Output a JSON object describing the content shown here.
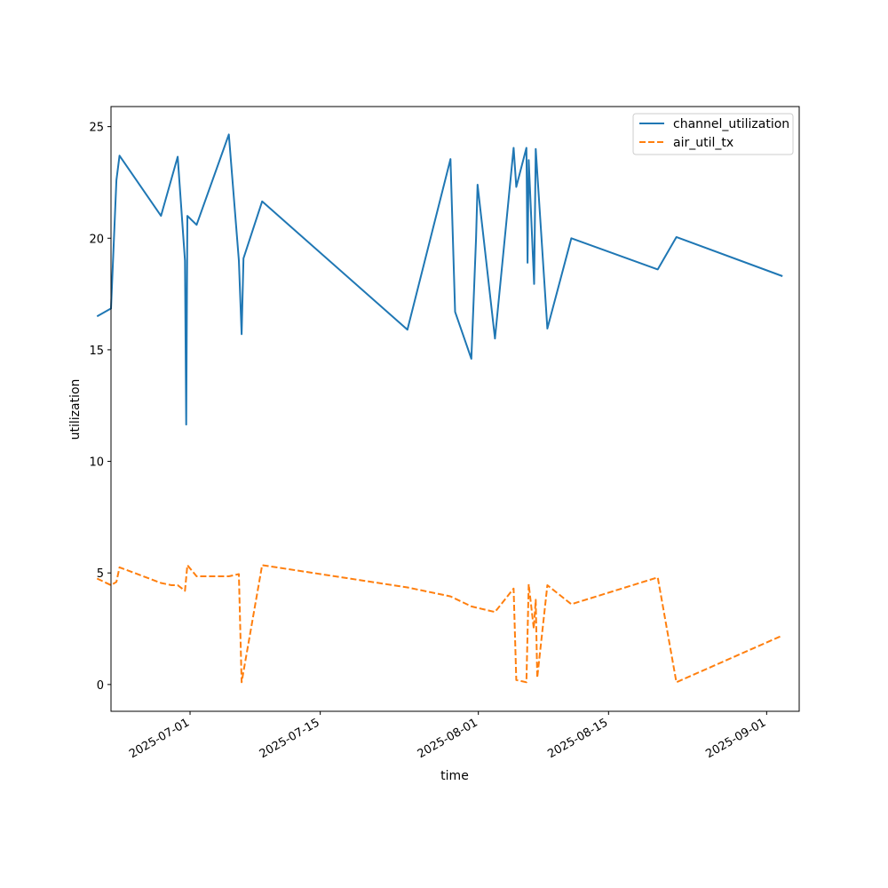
{
  "chart_data": {
    "type": "line",
    "title": "",
    "xlabel": "time",
    "ylabel": "utilization",
    "xlim": [
      "2025-06-22T12:00",
      "2025-09-04T12:00"
    ],
    "ylim": [
      -1.2,
      25.9
    ],
    "x_ticks": [
      "2025-07-01",
      "2025-07-15",
      "2025-08-01",
      "2025-08-15",
      "2025-09-01"
    ],
    "y_ticks": [
      0,
      5,
      10,
      15,
      20,
      25
    ],
    "grid": false,
    "legend_position": "top-right",
    "colors": {
      "channel_utilization": "#1f77b4",
      "air_util_tx": "#ff7f0e"
    },
    "series": [
      {
        "name": "channel_utilization",
        "line_style": "solid",
        "points": [
          [
            "2025-06-21T00:00",
            16.5
          ],
          [
            "2025-06-22T12:00",
            16.85
          ],
          [
            "2025-06-23T02:00",
            22.6
          ],
          [
            "2025-06-23T10:00",
            23.7
          ],
          [
            "2025-06-27T21:00",
            21.0
          ],
          [
            "2025-06-29T16:00",
            23.65
          ],
          [
            "2025-06-30T11:00",
            19.0
          ],
          [
            "2025-06-30T14:00",
            11.65
          ],
          [
            "2025-06-30T17:00",
            21.0
          ],
          [
            "2025-07-01T17:00",
            20.6
          ],
          [
            "2025-07-05T04:00",
            24.65
          ],
          [
            "2025-07-06T06:00",
            19.0
          ],
          [
            "2025-07-06T13:00",
            15.7
          ],
          [
            "2025-07-06T18:00",
            19.1
          ],
          [
            "2025-07-08T18:00",
            21.65
          ],
          [
            "2025-07-24T09:00",
            15.9
          ],
          [
            "2025-07-29T00:00",
            23.55
          ],
          [
            "2025-07-29T12:00",
            16.7
          ],
          [
            "2025-07-31T06:00",
            14.6
          ],
          [
            "2025-07-31T18:00",
            20.0
          ],
          [
            "2025-07-31T22:00",
            22.4
          ],
          [
            "2025-08-02T19:00",
            15.5
          ],
          [
            "2025-08-04T19:00",
            24.05
          ],
          [
            "2025-08-05T02:00",
            22.3
          ],
          [
            "2025-08-06T04:00",
            24.05
          ],
          [
            "2025-08-06T07:00",
            18.9
          ],
          [
            "2025-08-06T10:00",
            23.5
          ],
          [
            "2025-08-07T00:00",
            17.95
          ],
          [
            "2025-08-07T04:00",
            24.0
          ],
          [
            "2025-08-08T10:00",
            15.95
          ],
          [
            "2025-08-11T00:00",
            20.0
          ],
          [
            "2025-08-20T07:00",
            18.6
          ],
          [
            "2025-08-22T07:00",
            20.05
          ],
          [
            "2025-09-02T17:00",
            18.3
          ]
        ]
      },
      {
        "name": "air_util_tx",
        "line_style": "dashed",
        "points": [
          [
            "2025-06-21T00:00",
            4.75
          ],
          [
            "2025-06-22T12:00",
            4.45
          ],
          [
            "2025-06-23T02:00",
            4.6
          ],
          [
            "2025-06-23T10:00",
            5.25
          ],
          [
            "2025-06-27T21:00",
            4.55
          ],
          [
            "2025-06-29T00:00",
            4.45
          ],
          [
            "2025-06-29T16:00",
            4.45
          ],
          [
            "2025-06-30T11:00",
            4.2
          ],
          [
            "2025-06-30T17:00",
            5.35
          ],
          [
            "2025-07-01T17:00",
            4.85
          ],
          [
            "2025-07-05T04:00",
            4.85
          ],
          [
            "2025-07-06T06:00",
            4.95
          ],
          [
            "2025-07-06T13:00",
            0.1
          ],
          [
            "2025-07-08T18:00",
            5.35
          ],
          [
            "2025-07-24T09:00",
            4.35
          ],
          [
            "2025-07-29T00:00",
            3.95
          ],
          [
            "2025-07-31T06:00",
            3.5
          ],
          [
            "2025-08-02T19:00",
            3.25
          ],
          [
            "2025-08-04T19:00",
            4.3
          ],
          [
            "2025-08-05T02:00",
            0.2
          ],
          [
            "2025-08-06T04:00",
            0.1
          ],
          [
            "2025-08-06T10:00",
            4.5
          ],
          [
            "2025-08-06T23:00",
            2.5
          ],
          [
            "2025-08-07T04:00",
            3.8
          ],
          [
            "2025-08-07T08:00",
            0.3
          ],
          [
            "2025-08-08T10:00",
            4.45
          ],
          [
            "2025-08-11T00:00",
            3.6
          ],
          [
            "2025-08-20T07:00",
            4.8
          ],
          [
            "2025-08-22T07:00",
            0.1
          ],
          [
            "2025-09-02T17:00",
            2.2
          ]
        ]
      }
    ]
  }
}
